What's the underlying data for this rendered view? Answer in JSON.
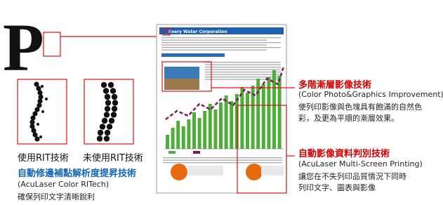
{
  "logo_letter": "P",
  "document": {
    "header": "Every Water Corporation"
  },
  "rit": {
    "label_with": "使用RIT技術",
    "label_without": "未使用RIT技術",
    "title": "自動修邊補點解析度提昇技術",
    "subtitle": "(AcuLaser Color RITech)",
    "description": "確保列印文字清晰銳利"
  },
  "gradation": {
    "title": "多階漸層影像技術",
    "subtitle": "(Color Photo&Graphics Improvement)",
    "description": [
      "使列印影像與色塊具有飽滿的自然色",
      "彩，及更為平順的漸層效果。"
    ]
  },
  "multiscreen": {
    "title": "自動影像資料判別技術",
    "subtitle": "(AcuLaser Multi-Screen Printing)",
    "description": [
      "讓您在不失列印品質情況下同時",
      "列印文字、圖表與影像"
    ]
  }
}
